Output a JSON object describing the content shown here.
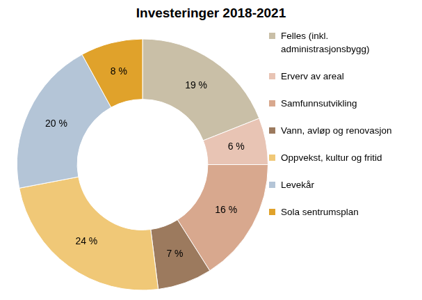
{
  "chart_data": {
    "type": "doughnut",
    "title": "Investeringer 2018-2021",
    "categories": [
      "Felles (inkl. administrasjonsbygg)",
      "Erverv av areal",
      "Samfunnsutvikling",
      "Vann, avløp og renovasjon",
      "Oppvekst, kultur og fritid",
      "Levekår",
      "Sola sentrumsplan"
    ],
    "values": [
      19,
      6,
      16,
      7,
      24,
      20,
      8
    ],
    "value_labels": [
      "19 %",
      "6 %",
      "16 %",
      "7 %",
      "24 %",
      "20 %",
      "8 %"
    ],
    "colors": [
      "#c9bfa7",
      "#e8c4b4",
      "#d8a88e",
      "#9c7a5e",
      "#f0c877",
      "#b4c5d7",
      "#e0a22b"
    ],
    "legend": "right",
    "data_labels": true
  }
}
